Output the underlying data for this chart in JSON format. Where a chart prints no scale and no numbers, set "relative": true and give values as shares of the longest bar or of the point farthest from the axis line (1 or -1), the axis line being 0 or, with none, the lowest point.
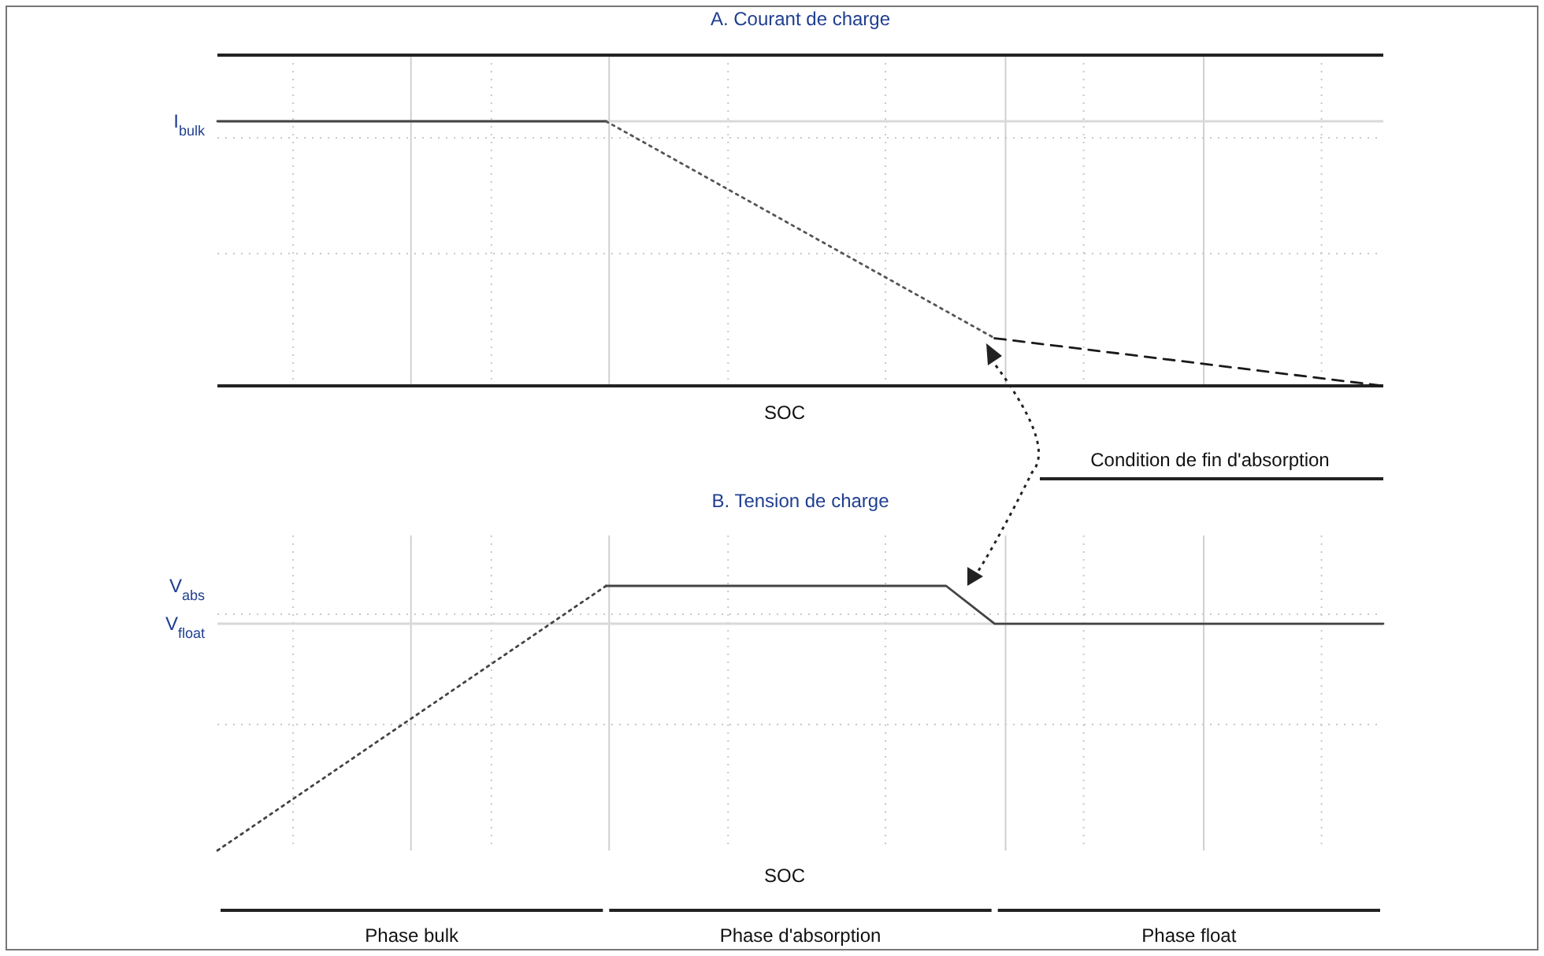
{
  "chart_data": [
    {
      "type": "line",
      "title": "A. Courant de charge",
      "xlabel": "SOC",
      "relative": true,
      "grid": true,
      "categories": [
        null,
        null,
        null,
        null
      ],
      "series": [
        {
          "color": "#444444",
          "line_style": "solid",
          "values": [
            1,
            1,
            null,
            null
          ]
        },
        {
          "color": "#555555",
          "line_style": "dotted",
          "values": [
            null,
            1,
            0.18,
            null
          ]
        },
        {
          "color": "#1a1a1a",
          "line_style": "dashed",
          "values": [
            null,
            null,
            0.18,
            0
          ]
        }
      ],
      "ref_lines": [
        {
          "axis": "y",
          "value": 1,
          "label": "I$_{bulk}$",
          "color": "#d9d9d9"
        }
      ],
      "annotations": [
        "Condition de fin d'absorption"
      ]
    },
    {
      "type": "line",
      "title": "B. Tension de charge",
      "xlabel": "SOC",
      "relative": true,
      "grid": true,
      "categories": [
        null,
        null,
        null,
        null,
        null,
        null,
        null,
        null,
        null,
        null,
        null,
        null,
        null,
        null,
        null,
        null,
        null,
        null,
        null,
        null,
        null,
        null,
        null,
        null,
        null
      ],
      "series": [
        {
          "color": "#444444",
          "line_style": "dotted",
          "values": [
            0,
            0.125,
            0.25,
            0.375,
            0.5,
            0.625,
            0.75,
            0.875,
            1,
            null,
            null,
            null,
            null,
            null,
            null,
            null,
            null,
            null,
            null,
            null,
            null,
            null,
            null,
            null,
            null
          ]
        },
        {
          "color": "#444444",
          "line_style": "solid",
          "values": [
            null,
            null,
            null,
            null,
            null,
            null,
            null,
            null,
            1,
            1,
            1,
            1,
            1,
            1,
            1,
            1,
            0.857,
            0.857,
            0.857,
            0.857,
            0.857,
            0.857,
            0.857,
            0.857,
            0.857
          ]
        }
      ],
      "ref_lines": [
        {
          "axis": "y",
          "value": 0.857,
          "label": "V$_{float}$",
          "color": "#d9d9d9"
        }
      ],
      "annotations": [
        "V$_{abs}$",
        "Phase bulk",
        "Phase d'absorption",
        "Phase float"
      ]
    }
  ]
}
